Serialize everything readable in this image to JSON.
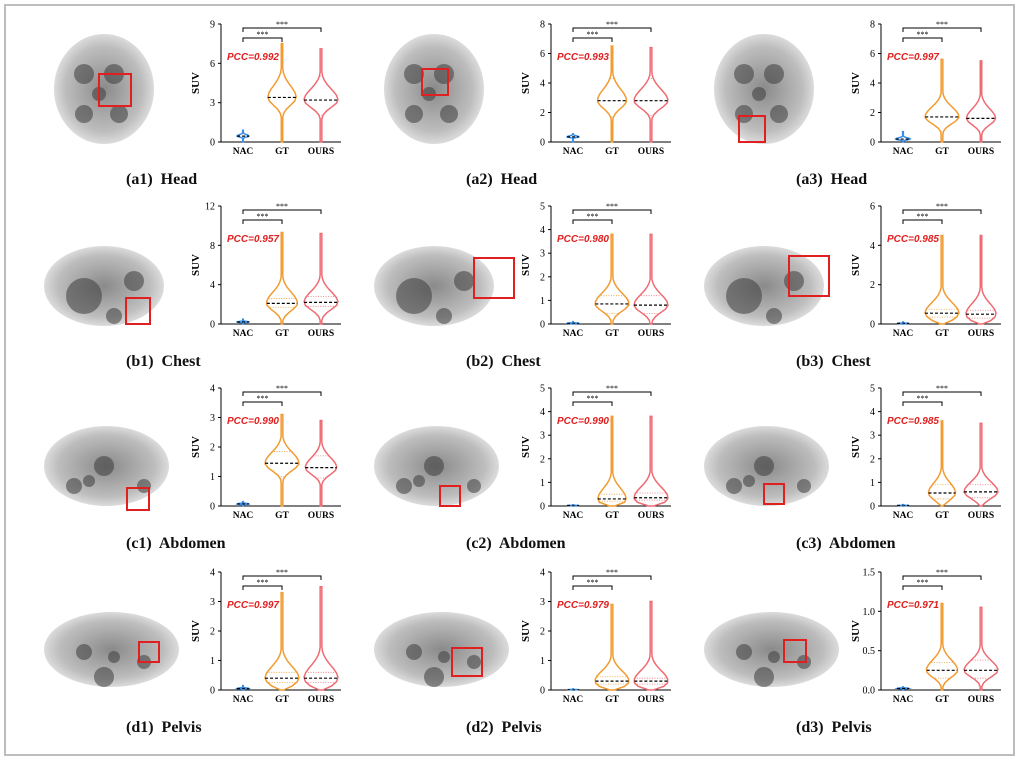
{
  "colors": {
    "nac": "#3a8ee6",
    "gt": "#f29b30",
    "ours": "#ef6b73",
    "pcc": "#e02020",
    "roi": "#e02020"
  },
  "chart_data": [
    {
      "id": "a1",
      "type": "violin",
      "caption": "(a1)  Head",
      "ylabel": "SUV",
      "categories": [
        "NAC",
        "GT",
        "OURS"
      ],
      "ylim": [
        0,
        9
      ],
      "yticks": [
        "0",
        "3",
        "6",
        "9"
      ],
      "pcc": "PCC=0.992",
      "significance": [
        "***",
        "***"
      ],
      "violins": [
        {
          "max": 0.9,
          "median": 0.45,
          "q1": 0.3,
          "q3": 0.65,
          "widest": 0.6
        },
        {
          "max": 7.5,
          "median": 3.4,
          "q1": 1.8,
          "q3": 5.3,
          "widest": 1.5
        },
        {
          "max": 7.1,
          "median": 3.2,
          "q1": 2.0,
          "q3": 5.0,
          "widest": 1.8
        }
      ]
    },
    {
      "id": "a2",
      "type": "violin",
      "caption": "(a2)  Head",
      "ylabel": "SUV",
      "categories": [
        "NAC",
        "GT",
        "OURS"
      ],
      "ylim": [
        0,
        8
      ],
      "yticks": [
        "0",
        "2",
        "4",
        "6",
        "8"
      ],
      "pcc": "PCC=0.993",
      "significance": [
        "***",
        "***"
      ],
      "violins": [
        {
          "max": 0.55,
          "median": 0.35,
          "q1": 0.25,
          "q3": 0.45,
          "widest": 0.35
        },
        {
          "max": 6.5,
          "median": 2.8,
          "q1": 1.7,
          "q3": 4.3,
          "widest": 1.2
        },
        {
          "max": 6.4,
          "median": 2.8,
          "q1": 1.8,
          "q3": 4.3,
          "widest": 1.4
        }
      ]
    },
    {
      "id": "a3",
      "type": "violin",
      "caption": "(a3)  Head",
      "ylabel": "SUV",
      "categories": [
        "NAC",
        "GT",
        "OURS"
      ],
      "ylim": [
        0,
        8
      ],
      "yticks": [
        "0",
        "2",
        "4",
        "6",
        "8"
      ],
      "pcc": "PCC=0.997",
      "significance": [
        "***",
        "***"
      ],
      "violins": [
        {
          "max": 0.7,
          "median": 0.2,
          "q1": 0.1,
          "q3": 0.4,
          "widest": 0.3
        },
        {
          "max": 5.6,
          "median": 1.7,
          "q1": 0.6,
          "q3": 3.7,
          "widest": 0.7
        },
        {
          "max": 5.5,
          "median": 1.6,
          "q1": 0.6,
          "q3": 3.4,
          "widest": 0.6
        }
      ]
    },
    {
      "id": "b1",
      "type": "violin",
      "caption": "(b1)  Chest",
      "ylabel": "SUV",
      "categories": [
        "NAC",
        "GT",
        "OURS"
      ],
      "ylim": [
        0,
        12
      ],
      "yticks": [
        "0",
        "4",
        "8",
        "12"
      ],
      "pcc": "PCC=0.957",
      "significance": [
        "***",
        "***"
      ],
      "violins": [
        {
          "max": 0.5,
          "median": 0.2,
          "q1": 0.15,
          "q3": 0.3,
          "widest": 0.2
        },
        {
          "max": 9.3,
          "median": 2.1,
          "q1": 1.7,
          "q3": 2.6,
          "widest": 2.2
        },
        {
          "max": 9.2,
          "median": 2.2,
          "q1": 1.8,
          "q3": 2.8,
          "widest": 2.4
        }
      ]
    },
    {
      "id": "b2",
      "type": "violin",
      "caption": "(b2)  Chest",
      "ylabel": "SUV",
      "categories": [
        "NAC",
        "GT",
        "OURS"
      ],
      "ylim": [
        0,
        5
      ],
      "yticks": [
        "0",
        "1",
        "2",
        "3",
        "4",
        "5"
      ],
      "pcc": "PCC=0.980",
      "significance": [
        "***",
        "***"
      ],
      "violins": [
        {
          "max": 0.1,
          "median": 0.03,
          "q1": 0.02,
          "q3": 0.05,
          "widest": 0.02
        },
        {
          "max": 3.8,
          "median": 0.85,
          "q1": 0.45,
          "q3": 1.2,
          "widest": 0.5
        },
        {
          "max": 3.8,
          "median": 0.8,
          "q1": 0.45,
          "q3": 1.2,
          "widest": 0.5
        }
      ]
    },
    {
      "id": "b3",
      "type": "violin",
      "caption": "(b3)  Chest",
      "ylabel": "SUV",
      "categories": [
        "NAC",
        "GT",
        "OURS"
      ],
      "ylim": [
        0,
        6
      ],
      "yticks": [
        "0",
        "2",
        "4",
        "6"
      ],
      "pcc": "PCC=0.985",
      "significance": [
        "***",
        "***"
      ],
      "violins": [
        {
          "max": 0.1,
          "median": 0.03,
          "q1": 0.02,
          "q3": 0.05,
          "widest": 0.02
        },
        {
          "max": 4.5,
          "median": 0.55,
          "q1": 0.35,
          "q3": 0.75,
          "widest": 0.45
        },
        {
          "max": 4.5,
          "median": 0.5,
          "q1": 0.3,
          "q3": 0.7,
          "widest": 0.4
        }
      ]
    },
    {
      "id": "c1",
      "type": "violin",
      "caption": "(c1)  Abdomen",
      "ylabel": "SUV",
      "categories": [
        "NAC",
        "GT",
        "OURS"
      ],
      "ylim": [
        0,
        4
      ],
      "yticks": [
        "0",
        "1",
        "2",
        "3",
        "4"
      ],
      "pcc": "PCC=0.990",
      "significance": [
        "***",
        "***"
      ],
      "violins": [
        {
          "max": 0.15,
          "median": 0.07,
          "q1": 0.05,
          "q3": 0.1,
          "widest": 0.08
        },
        {
          "max": 3.1,
          "median": 1.45,
          "q1": 1.0,
          "q3": 1.85,
          "widest": 1.4
        },
        {
          "max": 2.9,
          "median": 1.3,
          "q1": 0.95,
          "q3": 1.7,
          "widest": 1.3
        }
      ]
    },
    {
      "id": "c2",
      "type": "violin",
      "caption": "(c2)  Abdomen",
      "ylabel": "SUV",
      "categories": [
        "NAC",
        "GT",
        "OURS"
      ],
      "ylim": [
        0,
        5
      ],
      "yticks": [
        "0",
        "1",
        "2",
        "3",
        "4",
        "5"
      ],
      "pcc": "PCC=0.990",
      "significance": [
        "***",
        "***"
      ],
      "violins": [
        {
          "max": 0.05,
          "median": 0.02,
          "q1": 0.01,
          "q3": 0.03,
          "widest": 0.01
        },
        {
          "max": 3.8,
          "median": 0.3,
          "q1": 0.2,
          "q3": 0.5,
          "widest": 0.25
        },
        {
          "max": 3.8,
          "median": 0.35,
          "q1": 0.25,
          "q3": 0.55,
          "widest": 0.3
        }
      ]
    },
    {
      "id": "c3",
      "type": "violin",
      "caption": "(c3)  Abdomen",
      "ylabel": "SUV",
      "categories": [
        "NAC",
        "GT",
        "OURS"
      ],
      "ylim": [
        0,
        5
      ],
      "yticks": [
        "0",
        "1",
        "2",
        "3",
        "4",
        "5"
      ],
      "pcc": "PCC=0.985",
      "significance": [
        "***",
        "***"
      ],
      "violins": [
        {
          "max": 0.06,
          "median": 0.02,
          "q1": 0.01,
          "q3": 0.03,
          "widest": 0.01
        },
        {
          "max": 3.6,
          "median": 0.55,
          "q1": 0.3,
          "q3": 0.9,
          "widest": 0.4
        },
        {
          "max": 3.5,
          "median": 0.6,
          "q1": 0.35,
          "q3": 0.9,
          "widest": 0.5
        }
      ]
    },
    {
      "id": "d1",
      "type": "violin",
      "caption": "(d1)  Pelvis",
      "ylabel": "SUV",
      "categories": [
        "NAC",
        "GT",
        "OURS"
      ],
      "ylim": [
        0,
        4
      ],
      "yticks": [
        "0",
        "1",
        "2",
        "3",
        "4"
      ],
      "pcc": "PCC=0.997",
      "significance": [
        "***",
        "***"
      ],
      "violins": [
        {
          "max": 0.15,
          "median": 0.05,
          "q1": 0.03,
          "q3": 0.08,
          "widest": 0.04
        },
        {
          "max": 3.3,
          "median": 0.4,
          "q1": 0.25,
          "q3": 0.6,
          "widest": 0.3
        },
        {
          "max": 3.5,
          "median": 0.4,
          "q1": 0.25,
          "q3": 0.6,
          "widest": 0.3
        }
      ]
    },
    {
      "id": "d2",
      "type": "violin",
      "caption": "(d2)  Pelvis",
      "ylabel": "SUV",
      "categories": [
        "NAC",
        "GT",
        "OURS"
      ],
      "ylim": [
        0,
        4
      ],
      "yticks": [
        "0",
        "1",
        "2",
        "3",
        "4"
      ],
      "pcc": "PCC=0.979",
      "significance": [
        "***",
        "***"
      ],
      "violins": [
        {
          "max": 0.04,
          "median": 0.01,
          "q1": 0.01,
          "q3": 0.02,
          "widest": 0.01
        },
        {
          "max": 2.9,
          "median": 0.3,
          "q1": 0.2,
          "q3": 0.45,
          "widest": 0.25
        },
        {
          "max": 3.0,
          "median": 0.3,
          "q1": 0.2,
          "q3": 0.4,
          "widest": 0.25
        }
      ]
    },
    {
      "id": "d3",
      "type": "violin",
      "caption": "(d3)  Pelvis",
      "ylabel": "SUV",
      "categories": [
        "NAC",
        "GT",
        "OURS"
      ],
      "ylim": [
        0,
        1.5
      ],
      "yticks": [
        "0.0",
        "0.5",
        "1.0",
        "1.5"
      ],
      "pcc": "PCC=0.971",
      "significance": [
        "***",
        "***"
      ],
      "violins": [
        {
          "max": 0.04,
          "median": 0.02,
          "q1": 0.01,
          "q3": 0.03,
          "widest": 0.02
        },
        {
          "max": 1.1,
          "median": 0.25,
          "q1": 0.15,
          "q3": 0.35,
          "widest": 0.25
        },
        {
          "max": 1.05,
          "median": 0.25,
          "q1": 0.15,
          "q3": 0.38,
          "widest": 0.27
        }
      ]
    }
  ]
}
